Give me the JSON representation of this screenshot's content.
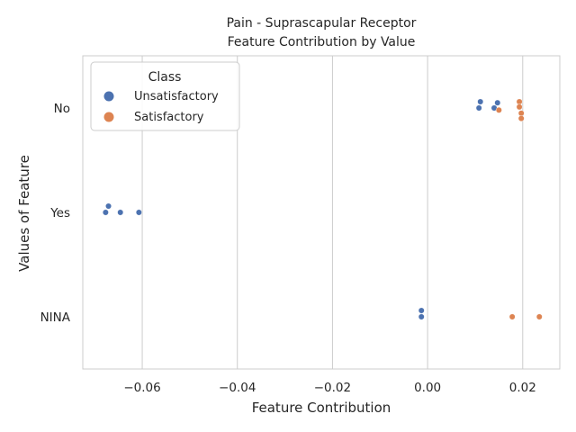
{
  "chart_data": {
    "type": "scatter",
    "title_lines": [
      "Pain - Suprascapular Receptor",
      "Feature Contribution by Value"
    ],
    "xlabel": "Feature Contribution",
    "ylabel": "Values of Feature",
    "xlim": [
      -0.0725,
      0.0278
    ],
    "x_ticks": [
      -0.06,
      -0.04,
      -0.02,
      0.0,
      0.02
    ],
    "x_tick_labels": [
      "−0.06",
      "−0.04",
      "−0.02",
      "0.00",
      "0.02"
    ],
    "categories": [
      "No",
      "Yes",
      "NINA"
    ],
    "grid": "vertical",
    "legend": {
      "title": "Class",
      "placement": "top-left"
    },
    "series": [
      {
        "name": "Unsatisfactory",
        "color": "#4c72b0",
        "points": [
          {
            "category": "No",
            "x": 0.0111,
            "jitter": -0.06
          },
          {
            "category": "No",
            "x": 0.0108,
            "jitter": 0.0
          },
          {
            "category": "No",
            "x": 0.014,
            "jitter": 0.0
          },
          {
            "category": "No",
            "x": 0.0147,
            "jitter": -0.05
          },
          {
            "category": "Yes",
            "x": -0.0671,
            "jitter": -0.06
          },
          {
            "category": "Yes",
            "x": -0.0677,
            "jitter": 0.0
          },
          {
            "category": "Yes",
            "x": -0.0646,
            "jitter": 0.0
          },
          {
            "category": "Yes",
            "x": -0.0607,
            "jitter": 0.0
          },
          {
            "category": "NINA",
            "x": -0.0013,
            "jitter": -0.06
          },
          {
            "category": "NINA",
            "x": -0.0013,
            "jitter": 0.0
          }
        ]
      },
      {
        "name": "Satisfactory",
        "color": "#dd8452",
        "points": [
          {
            "category": "No",
            "x": 0.0193,
            "jitter": -0.06
          },
          {
            "category": "No",
            "x": 0.0193,
            "jitter": -0.01
          },
          {
            "category": "No",
            "x": 0.015,
            "jitter": 0.02
          },
          {
            "category": "No",
            "x": 0.0197,
            "jitter": 0.05
          },
          {
            "category": "No",
            "x": 0.0197,
            "jitter": 0.1
          },
          {
            "category": "NINA",
            "x": 0.0178,
            "jitter": 0.0
          },
          {
            "category": "NINA",
            "x": 0.0235,
            "jitter": 0.0
          }
        ]
      }
    ]
  }
}
